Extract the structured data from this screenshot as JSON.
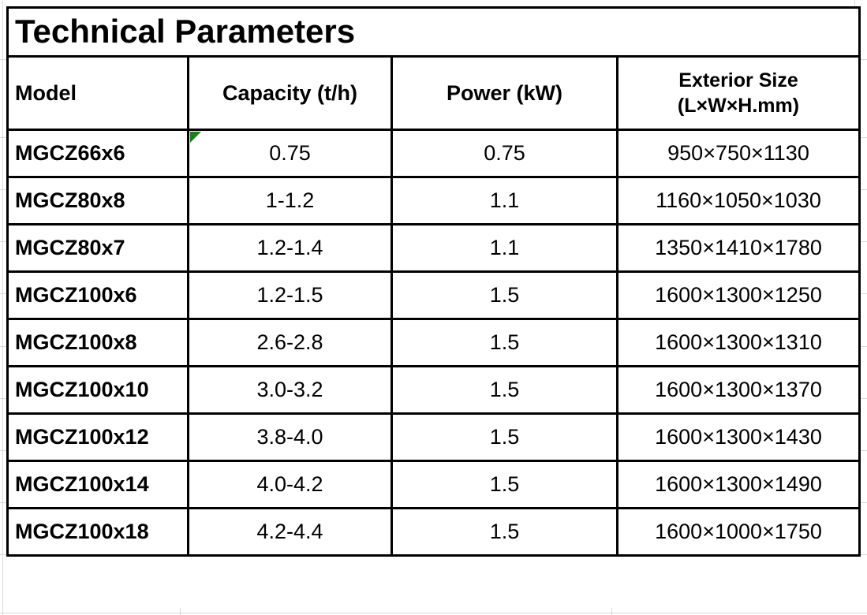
{
  "app": {
    "kind": "spreadsheet-table"
  },
  "colors": {
    "table_border": "#000000",
    "text": "#000000",
    "flag_indicator_green": "#1d7d1d",
    "sheet_gridline": "#d9d9d9",
    "background": "#ffffff"
  },
  "table": {
    "title": "Technical Parameters",
    "columns": [
      {
        "label": "Model"
      },
      {
        "label": "Capacity (t/h)"
      },
      {
        "label": "Power (kW)"
      },
      {
        "label": "Exterior Size",
        "label2": "(L×W×H.mm)"
      }
    ],
    "rows": [
      {
        "model": "MGCZ66x6",
        "capacity": "0.75",
        "power": "0.75",
        "size": "950×750×1130",
        "capacity_flag": true
      },
      {
        "model": "MGCZ80x8",
        "capacity": "1-1.2",
        "power": "1.1",
        "size": "1160×1050×1030",
        "capacity_flag": false
      },
      {
        "model": "MGCZ80x7",
        "capacity": "1.2-1.4",
        "power": "1.1",
        "size": "1350×1410×1780",
        "capacity_flag": false
      },
      {
        "model": "MGCZ100x6",
        "capacity": "1.2-1.5",
        "power": "1.5",
        "size": "1600×1300×1250",
        "capacity_flag": false
      },
      {
        "model": "MGCZ100x8",
        "capacity": "2.6-2.8",
        "power": "1.5",
        "size": "1600×1300×1310",
        "capacity_flag": false
      },
      {
        "model": "MGCZ100x10",
        "capacity": "3.0-3.2",
        "power": "1.5",
        "size": "1600×1300×1370",
        "capacity_flag": false
      },
      {
        "model": "MGCZ100x12",
        "capacity": "3.8-4.0",
        "power": "1.5",
        "size": "1600×1300×1430",
        "capacity_flag": false
      },
      {
        "model": "MGCZ100x14",
        "capacity": "4.0-4.2",
        "power": "1.5",
        "size": "1600×1300×1490",
        "capacity_flag": false
      },
      {
        "model": "MGCZ100x18",
        "capacity": "4.2-4.4",
        "power": "1.5",
        "size": "1600×1000×1750",
        "capacity_flag": false
      }
    ]
  },
  "chart_data": {
    "type": "table",
    "title": "Technical Parameters",
    "columns": [
      "Model",
      "Capacity (t/h)",
      "Power (kW)",
      "Exterior Size (L×W×H.mm)"
    ],
    "rows": [
      [
        "MGCZ66x6",
        "0.75",
        "0.75",
        "950×750×1130"
      ],
      [
        "MGCZ80x8",
        "1-1.2",
        "1.1",
        "1160×1050×1030"
      ],
      [
        "MGCZ80x7",
        "1.2-1.4",
        "1.1",
        "1350×1410×1780"
      ],
      [
        "MGCZ100x6",
        "1.2-1.5",
        "1.5",
        "1600×1300×1250"
      ],
      [
        "MGCZ100x8",
        "2.6-2.8",
        "1.5",
        "1600×1300×1310"
      ],
      [
        "MGCZ100x10",
        "3.0-3.2",
        "1.5",
        "1600×1300×1370"
      ],
      [
        "MGCZ100x12",
        "3.8-4.0",
        "1.5",
        "1600×1300×1430"
      ],
      [
        "MGCZ100x14",
        "4.0-4.2",
        "1.5",
        "1600×1300×1490"
      ],
      [
        "MGCZ100x18",
        "4.2-4.4",
        "1.5",
        "1600×1000×1750"
      ]
    ],
    "notes": "First data row capacity cell carries a green number-stored-as-text indicator triangle"
  }
}
